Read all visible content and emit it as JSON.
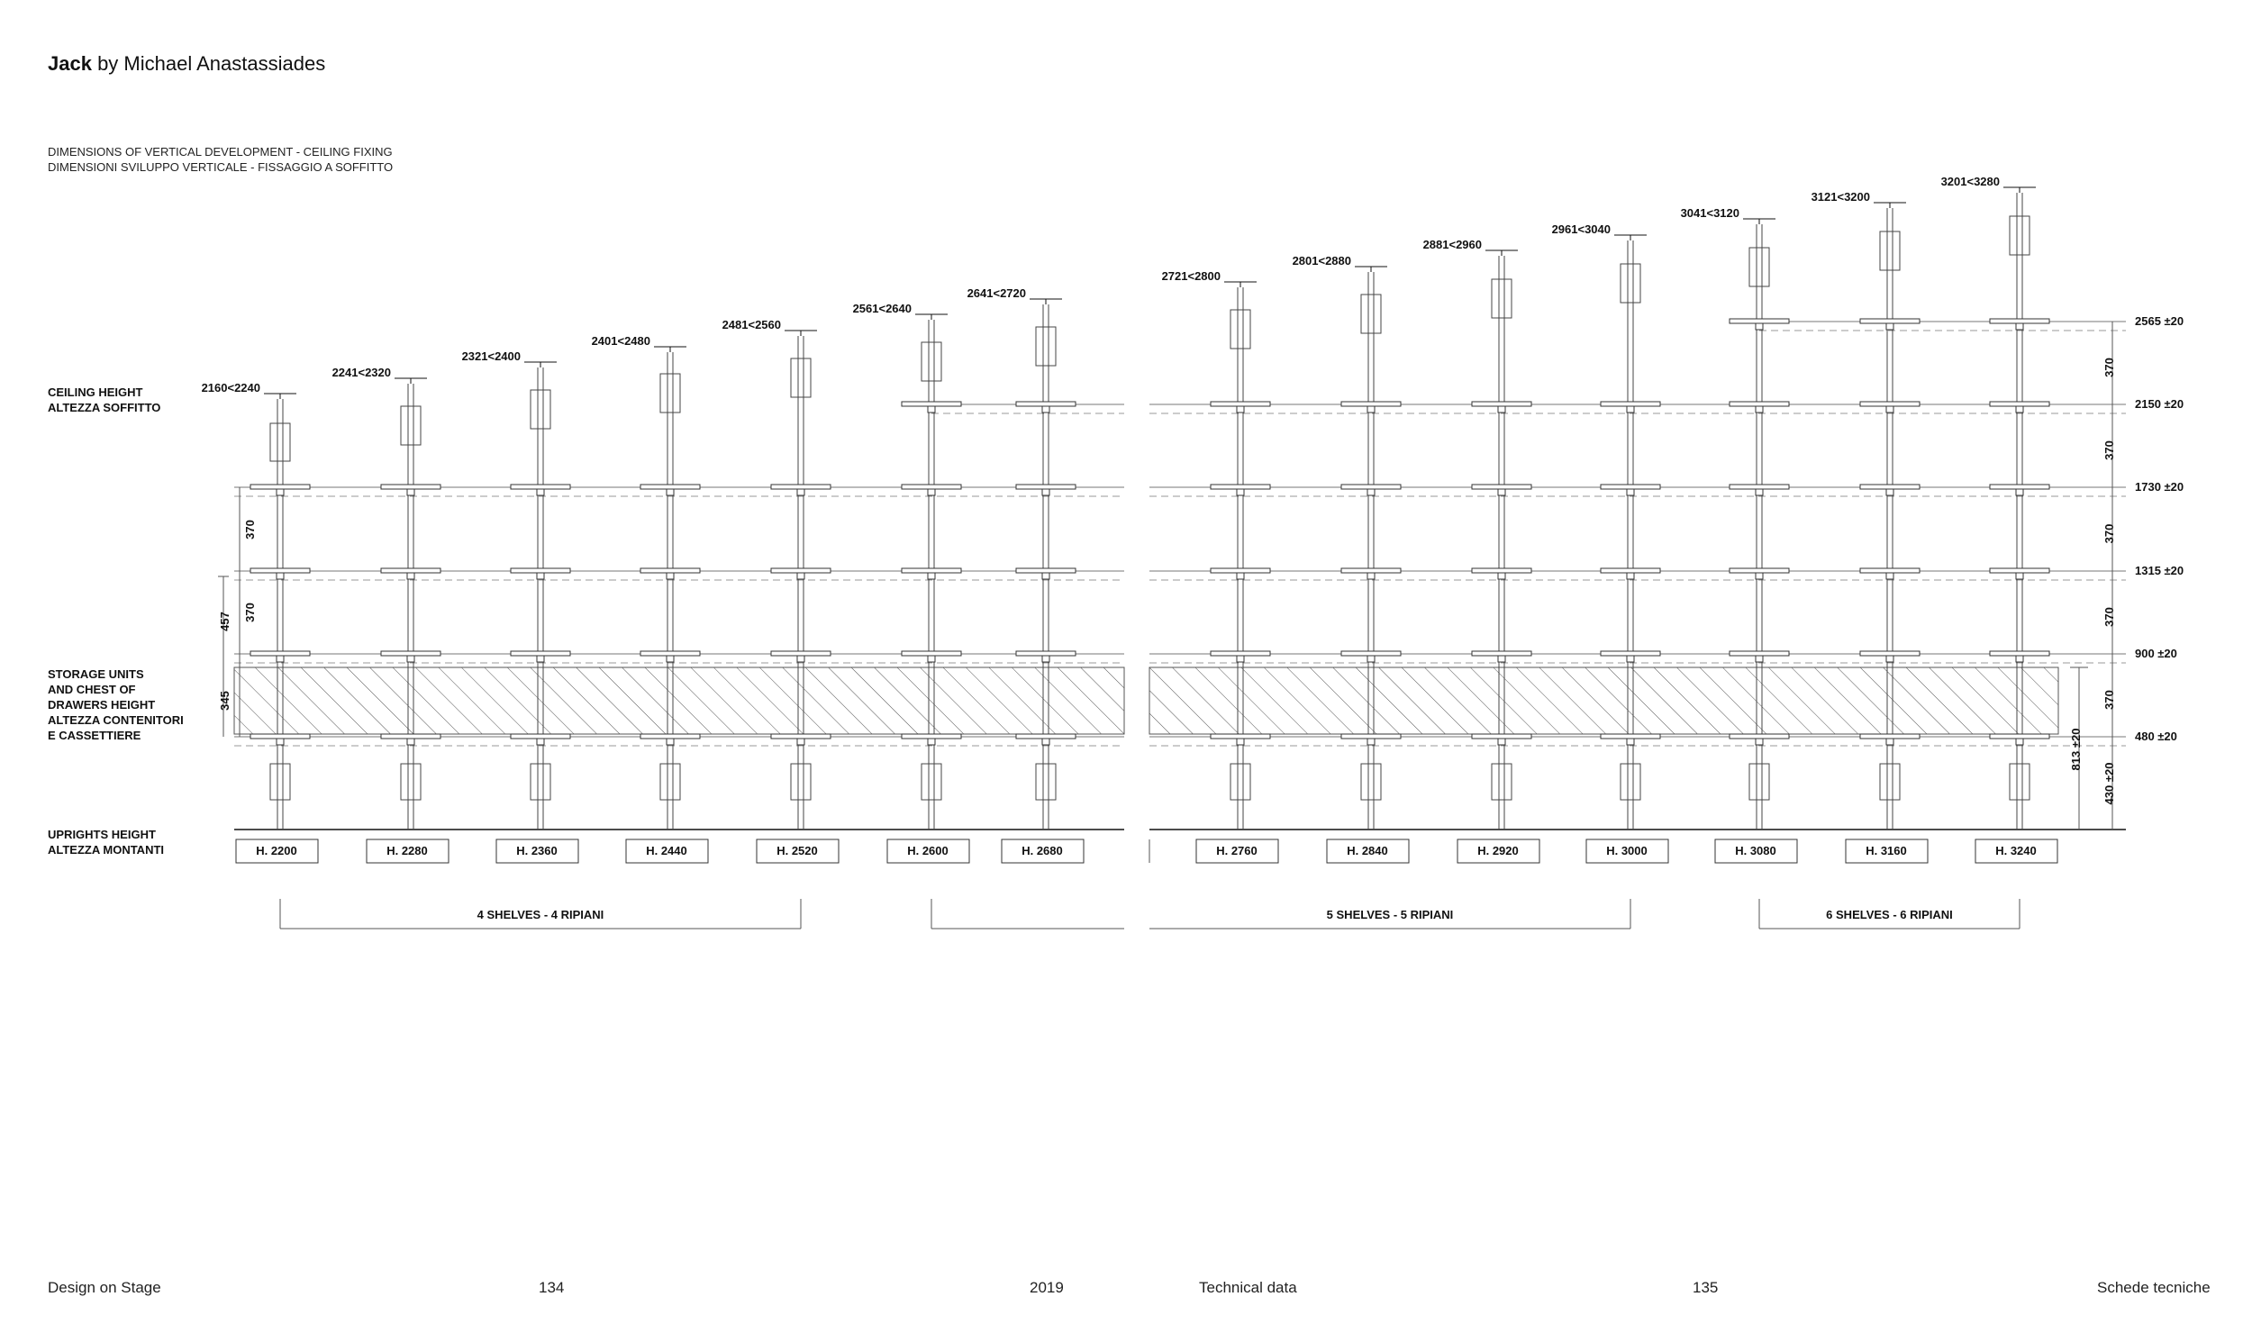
{
  "title": {
    "bold": "Jack",
    "rest": " by Michael Anastassiades"
  },
  "subtitle": {
    "line1": "DIMENSIONS OF VERTICAL DEVELOPMENT - CEILING FIXING",
    "line2": "DIMENSIONI SVILUPPO VERTICALE - FISSAGGIO A SOFFITTO"
  },
  "labels": {
    "ceiling": [
      "CEILING HEIGHT",
      "ALTEZZA SOFFITTO"
    ],
    "storage": [
      "STORAGE UNITS",
      "AND CHEST OF",
      "DRAWERS HEIGHT",
      "ALTEZZA CONTENITORI",
      "E CASSETTIERE"
    ],
    "uprights": [
      "UPRIGHTS HEIGHT",
      "ALTEZZA MONTANTI"
    ]
  },
  "columns": [
    {
      "upright": "H. 2200",
      "ceiling": "2160<2240",
      "shelves": 4
    },
    {
      "upright": "H. 2280",
      "ceiling": "2241<2320",
      "shelves": 4
    },
    {
      "upright": "H. 2360",
      "ceiling": "2321<2400",
      "shelves": 4
    },
    {
      "upright": "H. 2440",
      "ceiling": "2401<2480",
      "shelves": 4
    },
    {
      "upright": "H. 2520",
      "ceiling": "2481<2560",
      "shelves": 4
    },
    {
      "upright": "H. 2600",
      "ceiling": "2561<2640",
      "shelves": 5
    },
    {
      "upright": "H. 2680",
      "ceiling": "2641<2720",
      "shelves": 5
    },
    {
      "upright": "H. 2760",
      "ceiling": "2721<2800",
      "shelves": 5
    },
    {
      "upright": "H. 2840",
      "ceiling": "2801<2880",
      "shelves": 5
    },
    {
      "upright": "H. 2920",
      "ceiling": "2881<2960",
      "shelves": 5
    },
    {
      "upright": "H. 3000",
      "ceiling": "2961<3040",
      "shelves": 5
    },
    {
      "upright": "H. 3080",
      "ceiling": "3041<3120",
      "shelves": 6
    },
    {
      "upright": "H. 3160",
      "ceiling": "3121<3200",
      "shelves": 6
    },
    {
      "upright": "H. 3240",
      "ceiling": "3201<3280",
      "shelves": 6
    }
  ],
  "shelf_levels": [
    "480 ±20",
    "900 ±20",
    "1315 ±20",
    "1730 ±20",
    "2150 ±20",
    "2565 ±20"
  ],
  "spacing_label": "370",
  "dimension_labels": {
    "left_457": "457",
    "left_345": "345",
    "right_813": "813 ±20",
    "right_430": "430 ±20"
  },
  "groups": {
    "four": "4 SHELVES - 4 RIPIANI",
    "five": "5 SHELVES - 5 RIPIANI",
    "six": "6 SHELVES - 6 RIPIANI"
  },
  "footer": {
    "left_title": "Design on Stage",
    "left_page": "134",
    "year": "2019",
    "right_title": "Technical data",
    "right_page": "135",
    "right_label": "Schede tecniche"
  }
}
